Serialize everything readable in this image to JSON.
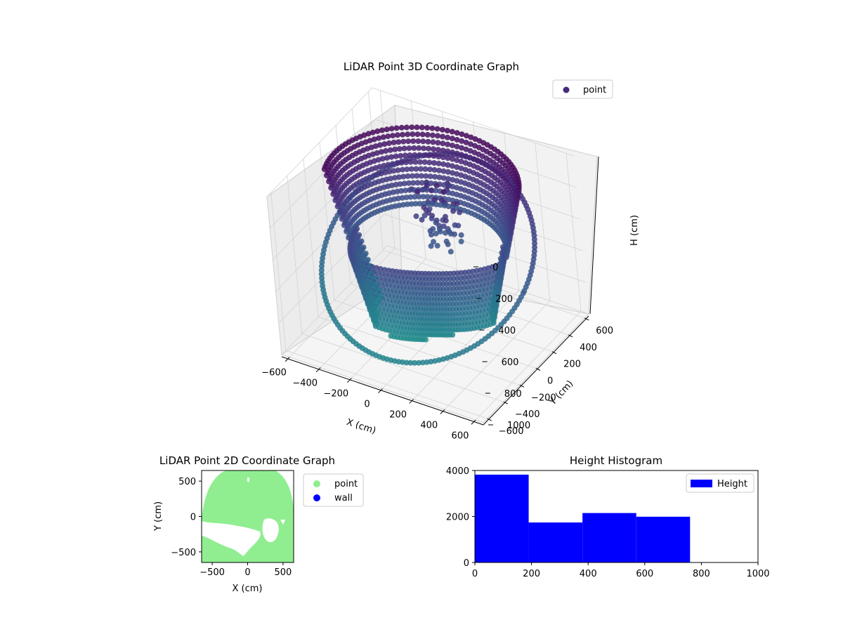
{
  "chart_data": [
    {
      "type": "scatter",
      "projection": "3d",
      "title": "LiDAR Point 3D Coordinate Graph",
      "xlabel": "X (cm)",
      "ylabel": "Y (cm)",
      "zlabel": "H (cm)",
      "xlim": [
        -650,
        650
      ],
      "ylim": [
        -650,
        650
      ],
      "zlim": [
        0,
        1000
      ],
      "z_inverted": true,
      "xticks": [
        "−600",
        "−400",
        "−200",
        "0",
        "200",
        "400",
        "600"
      ],
      "yticks": [
        "−600",
        "−400",
        "−200",
        "0",
        "200",
        "400",
        "600"
      ],
      "zticks": [
        "0",
        "200",
        "400",
        "600",
        "800",
        "1000"
      ],
      "grid": true,
      "colormap": "viridis",
      "legend": {
        "placement": "upper-right",
        "entries": [
          {
            "label": "point",
            "color": "#472c7a"
          }
        ]
      },
      "series": [
        {
          "name": "point",
          "structure": "dome-shaped point cloud: ring at radius ~600 cm near H ≈ 500 cm plus vertical curtains reaching H ≈ 0–1000 cm"
        }
      ]
    },
    {
      "type": "scatter",
      "title": "LiDAR Point 2D Coordinate Graph",
      "xlabel": "X (cm)",
      "ylabel": "Y (cm)",
      "xlim": [
        -650,
        650
      ],
      "ylim": [
        -650,
        650
      ],
      "xticks": [
        "−500",
        "0",
        "500"
      ],
      "yticks": [
        "500",
        "0",
        "−500"
      ],
      "legend": {
        "placement": "outside-right",
        "entries": [
          {
            "label": "point",
            "color": "#90ee90"
          },
          {
            "label": "wall",
            "color": "#0000ff"
          }
        ]
      }
    },
    {
      "type": "bar",
      "subtype": "histogram",
      "title": "Height Histogram",
      "xlim": [
        0,
        1000
      ],
      "ylim": [
        0,
        4000
      ],
      "xticks": [
        "0",
        "200",
        "400",
        "600",
        "800",
        "1000"
      ],
      "yticks": [
        "0",
        "2000",
        "4000"
      ],
      "bins": [
        {
          "start": 0,
          "end": 190,
          "count": 3820
        },
        {
          "start": 190,
          "end": 380,
          "count": 1740
        },
        {
          "start": 380,
          "end": 570,
          "count": 2150
        },
        {
          "start": 570,
          "end": 760,
          "count": 1990
        }
      ],
      "color": "#0000ff",
      "legend": {
        "placement": "upper-right",
        "entries": [
          {
            "label": "Height",
            "color": "#0000ff"
          }
        ]
      }
    }
  ]
}
